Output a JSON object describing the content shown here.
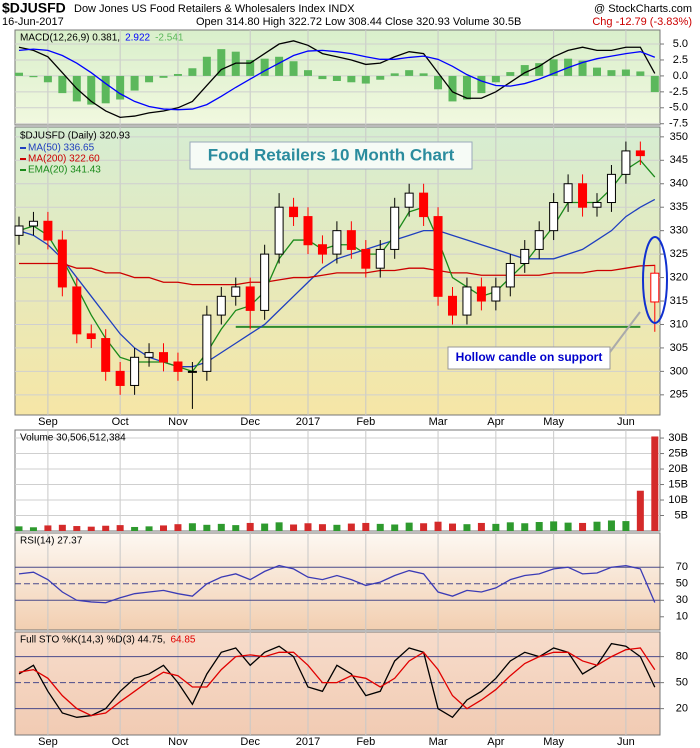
{
  "header": {
    "symbol": "$DJUSFD",
    "name": "Dow Jones US Food Retailers & Wholesalers Index INDX",
    "source": "@ StockCharts.com",
    "date": "16-Jun-2017",
    "quote": "Open 314.80 High 322.72 Low 308.44 Close 320.93 Volume 30.5B",
    "change": "Chg -12.79 (-3.83%)"
  },
  "chart_data": [
    {
      "type": "line",
      "ylim": [
        -7.7,
        7.2
      ],
      "grid": true,
      "yticks": [
        {
          "value": 5,
          "label": "5.0"
        },
        2.5,
        {
          "value": 0,
          "label": "0.0"
        },
        -2.5,
        {
          "value": -5,
          "label": "-5.0"
        },
        -7.5
      ],
      "series": [
        {
          "name": "MACD(12,26,9) 0.381,",
          "color": "#000000",
          "values": [
            4.5,
            4.0,
            3.0,
            0.5,
            -2.0,
            -4.0,
            -5.5,
            -6.5,
            -6.3,
            -5.8,
            -5.5,
            -5.0,
            -4.0,
            -1.5,
            1.0,
            2.0,
            2.0,
            3.5,
            5.0,
            5.5,
            4.8,
            3.5,
            3.0,
            2.5,
            1.8,
            2.0,
            3.0,
            3.8,
            3.5,
            0.5,
            -2.5,
            -3.5,
            -3.5,
            -2.5,
            -1.0,
            0.5,
            1.5,
            3.0,
            4.0,
            4.5,
            4.0,
            4.0,
            4.5,
            4.5,
            0.381
          ]
        },
        {
          "name": "2.922",
          "color": "#0000ff",
          "values": [
            4.0,
            4.2,
            4.0,
            3.2,
            2.0,
            0.5,
            -1.2,
            -2.8,
            -4.0,
            -4.8,
            -5.2,
            -5.3,
            -5.2,
            -4.5,
            -3.2,
            -1.8,
            -0.5,
            0.8,
            2.0,
            3.2,
            3.9,
            4.0,
            3.8,
            3.5,
            3.0,
            2.6,
            2.6,
            2.9,
            3.1,
            2.6,
            1.5,
            0.2,
            -0.8,
            -1.5,
            -1.6,
            -1.2,
            -0.5,
            0.4,
            1.3,
            2.1,
            2.7,
            3.1,
            3.5,
            3.8,
            2.922
          ]
        },
        {
          "name": "-2.541",
          "color": "#5cb85c",
          "type": "bar",
          "values": [
            0.5,
            -0.2,
            -1.0,
            -2.7,
            -4.0,
            -4.5,
            -4.3,
            -3.7,
            -2.3,
            -1.0,
            -0.3,
            0.3,
            1.2,
            3.0,
            4.2,
            3.8,
            2.5,
            2.7,
            3.0,
            2.3,
            0.9,
            -0.5,
            -0.8,
            -1.0,
            -1.2,
            -0.6,
            0.4,
            0.9,
            0.4,
            -2.1,
            -4.0,
            -3.7,
            -2.7,
            -1.0,
            0.6,
            1.7,
            2.0,
            2.6,
            2.7,
            2.4,
            1.3,
            0.9,
            1.0,
            0.7,
            -2.541
          ]
        }
      ]
    },
    {
      "type": "candlestick",
      "title": "Food Retailers 10 Month Chart",
      "annotations": [
        "Hollow candle on support"
      ],
      "support": 309.5,
      "ylim": [
        290.7,
        352.1
      ],
      "grid": true,
      "yticks": [
        295,
        300,
        305,
        310,
        315,
        320,
        325,
        330,
        335,
        340,
        345,
        350
      ],
      "categories": [
        null,
        null,
        "Sep",
        null,
        null,
        null,
        null,
        "Oct",
        null,
        null,
        null,
        "Nov",
        null,
        null,
        null,
        null,
        "Dec",
        null,
        null,
        null,
        "2017",
        null,
        null,
        null,
        "Feb",
        null,
        null,
        null,
        null,
        "Mar",
        null,
        null,
        null,
        "Apr",
        null,
        null,
        null,
        "May",
        null,
        null,
        null,
        null,
        "Jun",
        null,
        null
      ],
      "ohlc": {
        "name": "$DJUSFD (Daily) 320.93",
        "up_color": "#000000",
        "down_color": "#ff0000",
        "open": [
          329,
          331,
          332,
          328,
          318,
          308,
          307,
          300,
          297,
          303,
          304,
          302,
          300,
          300,
          312,
          316,
          318,
          313,
          325,
          335,
          333,
          327,
          325,
          330,
          326,
          322,
          326,
          335,
          338,
          333,
          316,
          312,
          318,
          315,
          318,
          323,
          326,
          330,
          336,
          340,
          335,
          336,
          342,
          347,
          314.8
        ],
        "high": [
          333,
          334,
          334,
          330,
          320,
          310,
          309,
          302,
          305,
          306,
          306,
          304,
          302,
          314,
          318,
          320,
          320,
          327,
          338,
          337,
          335,
          329,
          332,
          332,
          328,
          328,
          337,
          340,
          340,
          335,
          318,
          320,
          320,
          320,
          325,
          328,
          332,
          338,
          342,
          342,
          338,
          344,
          349,
          349,
          322.72
        ],
        "low": [
          327,
          329,
          326,
          316,
          306,
          305,
          298,
          295,
          295,
          301,
          300,
          298,
          292,
          298,
          310,
          314,
          309,
          311,
          323,
          331,
          325,
          323,
          323,
          324,
          320,
          320,
          324,
          333,
          331,
          314,
          310,
          310,
          313,
          313,
          316,
          321,
          324,
          328,
          334,
          333,
          333,
          334,
          340,
          344,
          308.44
        ],
        "close": [
          331,
          332,
          328,
          318,
          308,
          307,
          300,
          297,
          303,
          304,
          302,
          300,
          300,
          312,
          316,
          318,
          313,
          325,
          335,
          333,
          327,
          325,
          330,
          326,
          322,
          326,
          335,
          338,
          333,
          316,
          312,
          318,
          315,
          318,
          323,
          326,
          330,
          336,
          340,
          335,
          336,
          342,
          347,
          346,
          320.93
        ]
      },
      "series": [
        {
          "name": "MA(50) 336.65",
          "color": "#1f3fbf",
          "values": [
            330,
            329,
            327,
            324,
            320,
            316,
            312,
            308,
            305,
            303,
            302,
            301,
            301,
            302,
            304,
            306,
            308,
            310,
            313,
            316,
            319,
            322,
            324,
            325,
            326,
            327,
            328,
            329,
            330,
            330,
            329,
            328,
            327,
            326,
            325,
            324,
            324,
            324,
            325,
            326,
            328,
            330,
            333,
            335,
            336.65
          ]
        },
        {
          "name": "MA(200) 322.60",
          "color": "#cc0000",
          "values": [
            323,
            323,
            323,
            323,
            322,
            322,
            321,
            321,
            320,
            320,
            319,
            319,
            318.5,
            318.5,
            318.5,
            318.5,
            319,
            319,
            319.5,
            320,
            320,
            320.5,
            321,
            321,
            321,
            321.5,
            321.5,
            322,
            322,
            321.5,
            321,
            321,
            320.5,
            320.5,
            320.5,
            320.5,
            320.5,
            321,
            321,
            321,
            321.5,
            321.5,
            322,
            322.5,
            322.6
          ]
        },
        {
          "name": "EMA(20) 341.43",
          "color": "#1a8a1a",
          "values": [
            330,
            331,
            329,
            324,
            318,
            312,
            307,
            303,
            302,
            302,
            302,
            301,
            300,
            304,
            309,
            313,
            314,
            317,
            324,
            328,
            328,
            326,
            327,
            327,
            325,
            325,
            329,
            334,
            335,
            328,
            320,
            318,
            316,
            317,
            320,
            323,
            327,
            331,
            336,
            336,
            336,
            339,
            343,
            345,
            341.43
          ]
        }
      ]
    },
    {
      "type": "bar",
      "ylim": [
        0,
        32.6
      ],
      "grid": true,
      "up_color": "#2e9a2e",
      "down_color": "#d42a2a",
      "yticks": [
        {
          "value": 5,
          "label": "5B"
        },
        {
          "value": 10,
          "label": "10B"
        },
        {
          "value": 15,
          "label": "15B"
        },
        {
          "value": 20,
          "label": "20B"
        },
        {
          "value": 25,
          "label": "25B"
        },
        {
          "value": 30,
          "label": "30B"
        }
      ],
      "series": [
        {
          "name": "Volume 30,506,512,384",
          "label_color": "#000000",
          "values": [
            1.5,
            1.2,
            1.8,
            2.0,
            1.6,
            1.4,
            1.7,
            1.9,
            1.3,
            1.5,
            1.8,
            2.2,
            2.5,
            2.0,
            2.3,
            1.9,
            2.6,
            2.4,
            2.8,
            2.1,
            2.5,
            2.2,
            2.0,
            2.4,
            2.6,
            2.3,
            2.1,
            2.7,
            2.5,
            3.0,
            2.4,
            2.2,
            2.6,
            2.3,
            2.8,
            2.5,
            2.9,
            3.1,
            2.7,
            2.6,
            3.0,
            3.4,
            3.2,
            13,
            30.51
          ]
        }
      ]
    },
    {
      "type": "line",
      "ylim": [
        -6,
        111.5
      ],
      "grid": false,
      "yticks": [
        10,
        30,
        50,
        70
      ],
      "levels": [
        70,
        50,
        30
      ],
      "series": [
        {
          "name": "RSI(14) 27.37",
          "color": "#3b3bb5",
          "label_color": "#000000",
          "values": [
            62,
            64,
            55,
            40,
            30,
            28,
            27,
            33,
            38,
            40,
            42,
            38,
            35,
            50,
            58,
            62,
            55,
            65,
            72,
            68,
            58,
            55,
            60,
            55,
            48,
            52,
            60,
            66,
            62,
            40,
            35,
            42,
            40,
            45,
            55,
            60,
            62,
            68,
            70,
            62,
            63,
            70,
            72,
            68,
            27.37
          ]
        }
      ]
    },
    {
      "type": "line",
      "ylim": [
        -10.4,
        108.4
      ],
      "grid": false,
      "yticks": [
        20,
        50,
        80
      ],
      "levels": [
        80,
        50,
        20
      ],
      "series": [
        {
          "name": "Full STO %K(14,3) %D(3) 44.75,",
          "color": "#000000",
          "values": [
            60,
            70,
            40,
            15,
            10,
            12,
            20,
            40,
            55,
            60,
            70,
            50,
            25,
            60,
            85,
            90,
            70,
            85,
            92,
            80,
            45,
            40,
            70,
            60,
            35,
            40,
            75,
            90,
            85,
            20,
            10,
            30,
            40,
            55,
            75,
            85,
            80,
            90,
            85,
            60,
            70,
            95,
            92,
            80,
            44.75
          ]
        },
        {
          "name": "64.85",
          "color": "#e00000",
          "values": [
            62,
            65,
            55,
            35,
            20,
            12,
            15,
            28,
            40,
            52,
            62,
            58,
            45,
            45,
            65,
            80,
            82,
            80,
            85,
            85,
            70,
            50,
            50,
            58,
            55,
            45,
            55,
            75,
            85,
            65,
            35,
            20,
            30,
            42,
            58,
            72,
            80,
            85,
            85,
            75,
            70,
            80,
            88,
            90,
            64.85
          ]
        }
      ]
    }
  ]
}
